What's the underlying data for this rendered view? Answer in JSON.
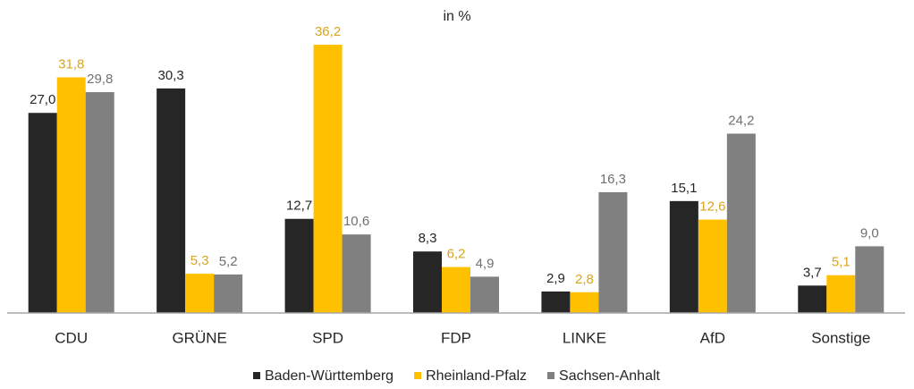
{
  "chart_data": {
    "type": "bar",
    "title": "in %",
    "categories": [
      "CDU",
      "GRÜNE",
      "SPD",
      "FDP",
      "LINKE",
      "AfD",
      "Sonstige"
    ],
    "series": [
      {
        "name": "Baden-Württemberg",
        "color": "#262626",
        "label_color": "#262626",
        "values": [
          27.0,
          30.3,
          12.7,
          8.3,
          2.9,
          15.1,
          3.7
        ],
        "value_labels": [
          "27,0",
          "30,3",
          "12,7",
          "8,3",
          "2,9",
          "15,1",
          "3,7"
        ]
      },
      {
        "name": "Rheinland-Pfalz",
        "color": "#ffc000",
        "label_color": "#d9a520",
        "values": [
          31.8,
          5.3,
          36.2,
          6.2,
          2.8,
          12.6,
          5.1
        ],
        "value_labels": [
          "31,8",
          "5,3",
          "36,2",
          "6,2",
          "2,8",
          "12,6",
          "5,1"
        ]
      },
      {
        "name": "Sachsen-Anhalt",
        "color": "#808080",
        "label_color": "#707070",
        "values": [
          29.8,
          5.2,
          10.6,
          4.9,
          16.3,
          24.2,
          9.0
        ],
        "value_labels": [
          "29,8",
          "5,2",
          "10,6",
          "4,9",
          "16,3",
          "24,2",
          "9,0"
        ]
      }
    ],
    "legend": "bottom"
  }
}
